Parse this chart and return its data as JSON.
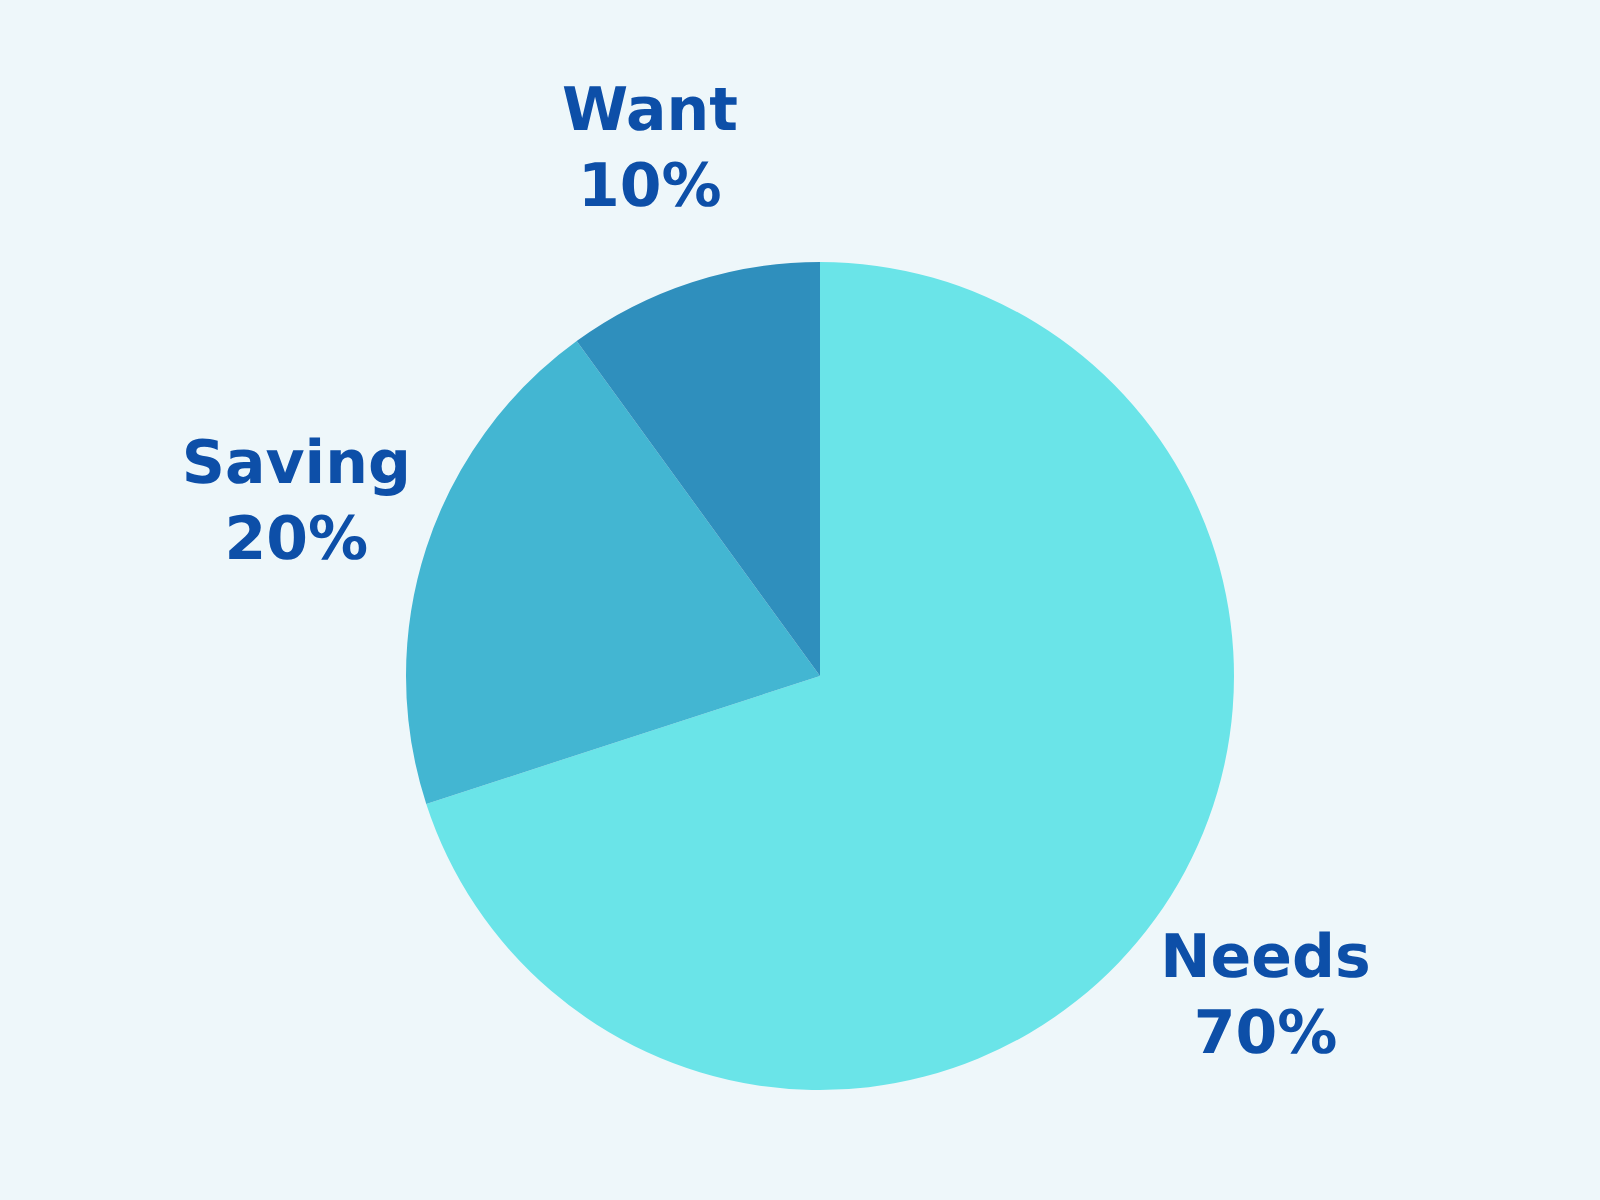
{
  "chart_data": {
    "type": "pie",
    "categories": [
      "Needs",
      "Saving",
      "Want"
    ],
    "values": [
      70,
      20,
      10
    ],
    "colors": [
      "#6ae4e8",
      "#43b6d2",
      "#2f8fbd"
    ],
    "value_labels": [
      "70%",
      "20%",
      "10%"
    ]
  }
}
